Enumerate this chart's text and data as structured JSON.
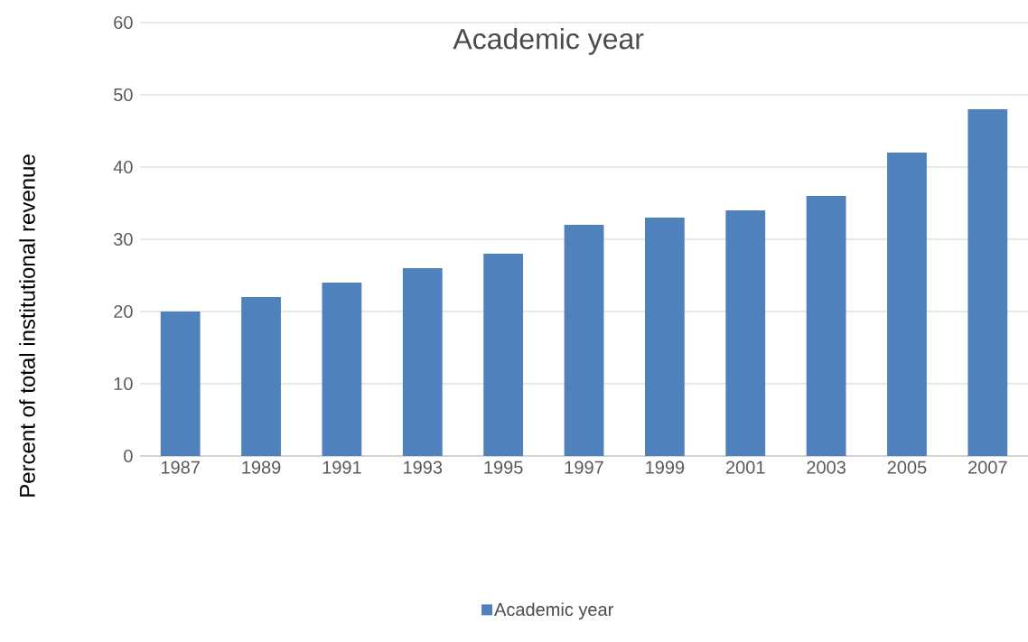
{
  "chart_data": {
    "type": "bar",
    "title": "Academic year",
    "ylabel": "Percent of total institutional revenue",
    "categories": [
      "1987",
      "1989",
      "1991",
      "1993",
      "1995",
      "1997",
      "1999",
      "2001",
      "2003",
      "2005",
      "2007"
    ],
    "series": [
      {
        "name": "Academic year",
        "color": "#4f81bd",
        "values": [
          20,
          22,
          24,
          26,
          28,
          32,
          33,
          34,
          36,
          42,
          48
        ]
      }
    ],
    "ylim": [
      0,
      60
    ],
    "yticks": [
      0,
      10,
      20,
      30,
      40,
      50,
      60
    ],
    "grid": "y",
    "legend": "bottom"
  }
}
